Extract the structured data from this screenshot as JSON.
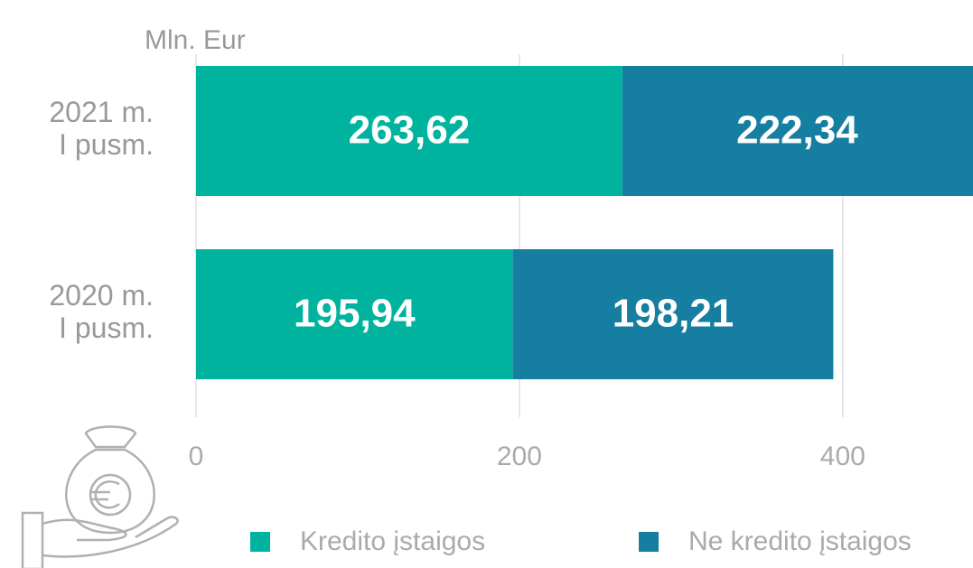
{
  "chart_data": {
    "type": "stacked_bar_horizontal",
    "unit_label": "Mln. Eur",
    "categories": [
      "2021 m.\nI pusm.",
      "2020 m.\nI pusm."
    ],
    "series": [
      {
        "name": "Kredito įstaigos",
        "color": "#00b39e",
        "values": [
          263.62,
          195.94
        ],
        "value_labels": [
          "263,62",
          "195,94"
        ]
      },
      {
        "name": "Ne kredito įstaigos",
        "color": "#167ea0",
        "values": [
          222.34,
          198.21
        ],
        "value_labels": [
          "222,34",
          "198,21"
        ]
      }
    ],
    "xlim": [
      0,
      480
    ],
    "xticks": [
      0,
      200,
      400
    ],
    "grid": true,
    "legend": "bottom"
  }
}
